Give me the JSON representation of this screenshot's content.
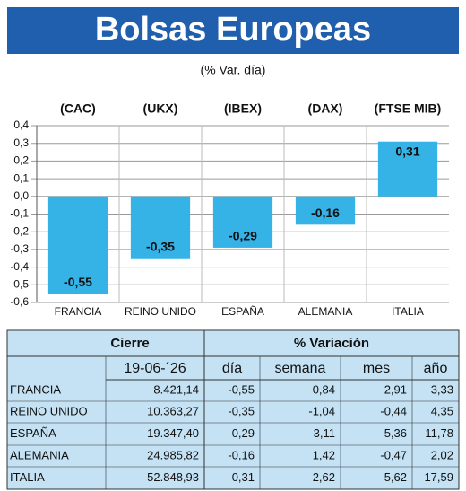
{
  "chart_data": {
    "type": "bar",
    "title": "Bolsas Europeas",
    "subtitle": "(% Var. día)",
    "indices": [
      "(CAC)",
      "(UKX)",
      "(IBEX)",
      "(DAX)",
      "(FTSE MIB)"
    ],
    "categories": [
      "FRANCIA",
      "REINO UNIDO",
      "ESPAÑA",
      "ALEMANIA",
      "ITALIA"
    ],
    "values": [
      -0.55,
      -0.35,
      -0.29,
      -0.16,
      0.31
    ],
    "value_labels": [
      "-0,55",
      "-0,35",
      "-0,29",
      "-0,16",
      "0,31"
    ],
    "color": "#35b3e6",
    "ylim": [
      -0.6,
      0.4
    ],
    "yticks": [
      {
        "value": 0.4,
        "label": "0,4"
      },
      {
        "value": 0.3,
        "label": "0,3"
      },
      {
        "value": 0.2,
        "label": "0,2"
      },
      {
        "value": 0.1,
        "label": "0,1"
      },
      {
        "value": 0.0,
        "label": "0,0"
      },
      {
        "value": -0.1,
        "label": "-0,1"
      },
      {
        "value": -0.2,
        "label": "-0,2"
      },
      {
        "value": -0.3,
        "label": "-0,3"
      },
      {
        "value": -0.4,
        "label": "-0,4"
      },
      {
        "value": -0.5,
        "label": "-0,5"
      },
      {
        "value": -0.6,
        "label": "-0,6"
      }
    ],
    "grid": true
  },
  "table": {
    "headers": [
      "Cierre",
      "% Variación"
    ],
    "subheaders": [
      "19-06-´26",
      "día",
      "semana",
      "mes",
      "año"
    ],
    "rows": [
      [
        "FRANCIA",
        "8.421,14",
        "-0,55",
        "0,84",
        "2,91",
        "3,33"
      ],
      [
        "REINO UNIDO",
        "10.363,27",
        "-0,35",
        "-1,04",
        "-0,44",
        "4,35"
      ],
      [
        "ESPAÑA",
        "19.347,40",
        "-0,29",
        "3,11",
        "5,36",
        "11,78"
      ],
      [
        "ALEMANIA",
        "24.985,82",
        "-0,16",
        "1,42",
        "-0,47",
        "2,02"
      ],
      [
        "ITALIA",
        "52.848,93",
        "0,31",
        "2,62",
        "5,62",
        "17,59"
      ]
    ]
  }
}
